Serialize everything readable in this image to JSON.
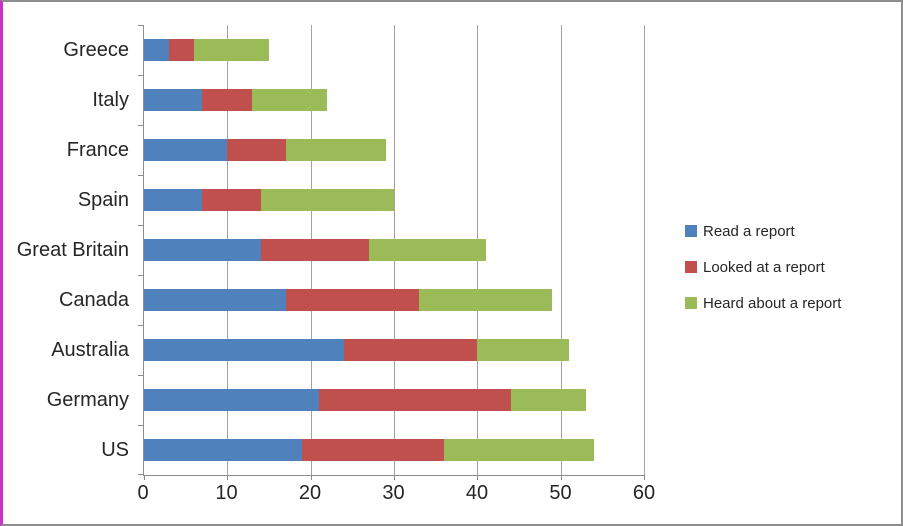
{
  "chart_data": {
    "type": "bar",
    "orientation": "horizontal",
    "stacked": true,
    "title": "",
    "xlabel": "",
    "ylabel": "",
    "xlim": [
      0,
      60
    ],
    "x_ticks": [
      0,
      10,
      20,
      30,
      40,
      50,
      60
    ],
    "grid": true,
    "legend_position": "right",
    "categories": [
      "Greece",
      "Italy",
      "France",
      "Spain",
      "Great Britain",
      "Canada",
      "Australia",
      "Germany",
      "US"
    ],
    "series": [
      {
        "name": "Read a report",
        "color": "#4F81BD",
        "values": [
          3,
          7,
          10,
          7,
          14,
          17,
          24,
          21,
          19
        ]
      },
      {
        "name": "Looked at a report",
        "color": "#C0504D",
        "values": [
          3,
          6,
          7,
          7,
          13,
          16,
          16,
          23,
          17
        ]
      },
      {
        "name": "Heard about a report",
        "color": "#9BBB59",
        "values": [
          9,
          9,
          12,
          16,
          14,
          16,
          11,
          9,
          18
        ]
      }
    ],
    "totals": [
      15,
      22,
      29,
      30,
      41,
      49,
      51,
      53,
      54
    ]
  }
}
